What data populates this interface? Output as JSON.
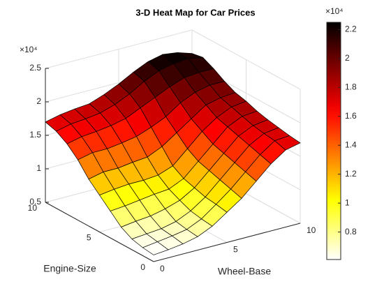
{
  "chart_data": {
    "type": "surface",
    "title": "3-D Heat Map for Car Prices",
    "xlabel": "Wheel-Base",
    "ylabel": "Engine-Size",
    "x": [
      0,
      1,
      2,
      3,
      4,
      5,
      6,
      7,
      8,
      9,
      10
    ],
    "y": [
      0,
      1,
      2,
      3,
      4,
      5,
      6,
      7,
      8,
      9,
      10
    ],
    "z": [
      [
        0.6,
        0.62,
        0.65,
        0.7,
        0.8,
        0.95,
        1.1,
        1.3,
        1.5,
        1.65,
        1.7
      ],
      [
        0.62,
        0.65,
        0.68,
        0.72,
        0.82,
        0.98,
        1.15,
        1.35,
        1.55,
        1.7,
        1.72
      ],
      [
        0.66,
        0.68,
        0.7,
        0.75,
        0.85,
        1.0,
        1.2,
        1.4,
        1.6,
        1.72,
        1.75
      ],
      [
        0.75,
        0.78,
        0.8,
        0.85,
        0.92,
        1.05,
        1.25,
        1.45,
        1.65,
        1.75,
        1.78
      ],
      [
        0.9,
        0.92,
        0.95,
        0.98,
        1.0,
        1.1,
        1.3,
        1.5,
        1.7,
        1.8,
        1.82
      ],
      [
        1.05,
        1.08,
        1.1,
        1.1,
        1.12,
        1.2,
        1.4,
        1.6,
        1.75,
        1.85,
        1.88
      ],
      [
        1.2,
        1.25,
        1.25,
        1.28,
        1.3,
        1.4,
        1.55,
        1.7,
        1.85,
        1.9,
        1.92
      ],
      [
        1.4,
        1.45,
        1.45,
        1.48,
        1.52,
        1.6,
        1.7,
        1.85,
        1.95,
        2.0,
        2.0
      ],
      [
        1.55,
        1.6,
        1.62,
        1.65,
        1.7,
        1.8,
        1.9,
        2.0,
        2.08,
        2.1,
        2.1
      ],
      [
        1.65,
        1.7,
        1.72,
        1.75,
        1.82,
        1.92,
        2.05,
        2.15,
        2.2,
        2.22,
        2.18
      ],
      [
        1.7,
        1.75,
        1.78,
        1.8,
        1.88,
        1.98,
        2.1,
        2.2,
        2.25,
        2.22,
        2.15
      ]
    ],
    "xlim": [
      0,
      10
    ],
    "ylim": [
      0,
      10
    ],
    "zlim": [
      0.5,
      2.5
    ],
    "xticks": [
      0,
      5,
      10
    ],
    "yticks": [
      0,
      5,
      10
    ],
    "zticks": [
      0.5,
      1,
      1.5,
      2,
      2.5
    ],
    "z_exponent": "×10⁴",
    "grid": true,
    "colormap": "hot",
    "colormap_reversed": true,
    "colorbar": {
      "clim": [
        0.61,
        2.25
      ],
      "ticks": [
        0.8,
        1,
        1.2,
        1.4,
        1.6,
        1.8,
        2,
        2.2
      ],
      "exponent": "×10⁴"
    }
  }
}
